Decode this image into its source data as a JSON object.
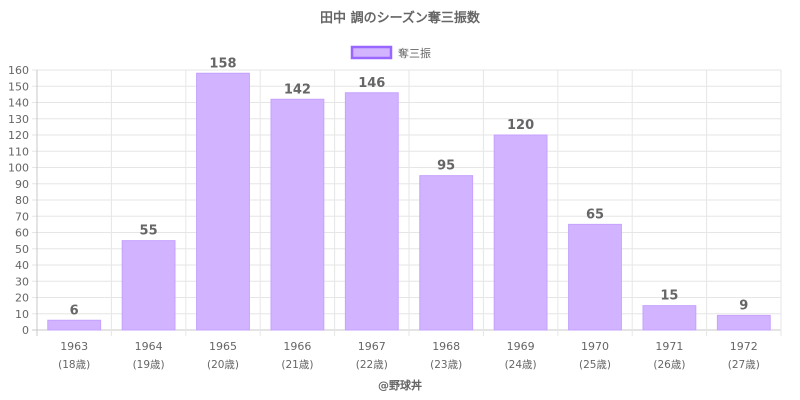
{
  "chart_data": {
    "type": "bar",
    "title": "田中 調のシーズン奪三振数",
    "legend": {
      "label": "奪三振",
      "position": "top-center"
    },
    "categories": [
      "1963",
      "1964",
      "1965",
      "1966",
      "1967",
      "1968",
      "1969",
      "1970",
      "1971",
      "1972"
    ],
    "category_sublabels": [
      "(18歳)",
      "(19歳)",
      "(20歳)",
      "(21歳)",
      "(22歳)",
      "(23歳)",
      "(24歳)",
      "(25歳)",
      "(26歳)",
      "(27歳)"
    ],
    "series": [
      {
        "name": "奪三振",
        "values": [
          6,
          55,
          158,
          142,
          146,
          95,
          120,
          65,
          15,
          9
        ]
      }
    ],
    "data_labels": true,
    "ylim": [
      0,
      160
    ],
    "y_tick_step": 10,
    "xlabel": "",
    "ylabel": "",
    "grid": true,
    "colors": {
      "bar_fill": "#d1b3ff",
      "bar_stroke": "#c6a2ff",
      "legend_stroke": "#9966ff",
      "grid": "#e6e6e6",
      "text": "#666666"
    }
  },
  "credit": "@野球丼"
}
